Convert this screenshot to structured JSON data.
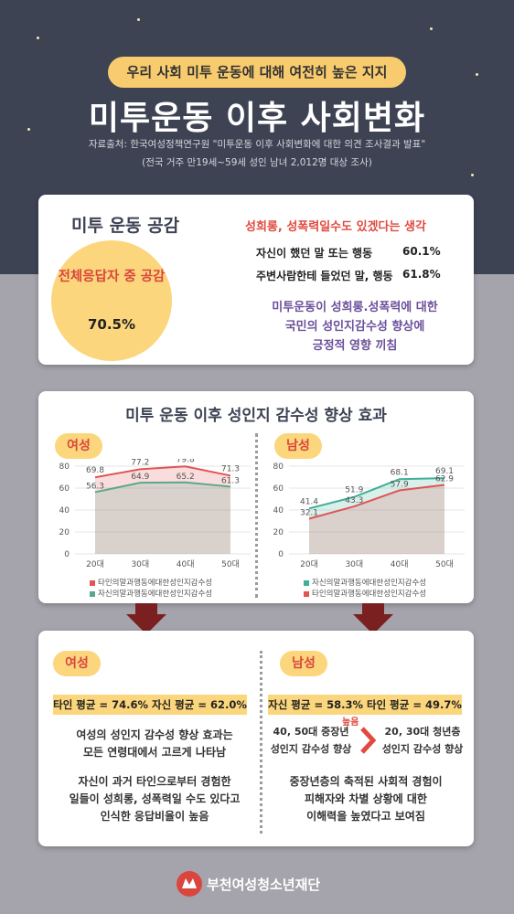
{
  "header": {
    "pill": "우리 사회 미투 운동에 대해 여전히 높은 지지",
    "title": "미투운동 이후 사회변화",
    "source": "자료출처: 한국여성정책연구원 \"미투운동 이후 사회변화에 대한 의견 조사결과 발표\"",
    "source_note": "(전국 거주 만19세~59세 성인 남녀 2,012명 대상 조사)"
  },
  "empathy": {
    "heading": "미투 운동 공감",
    "circle_label": "전체응답자 중 공감",
    "circle_value": "70.5%",
    "subheading": "성희롱, 성폭력일수도 있겠다는 생각",
    "items": [
      {
        "label": "자신이 했던 말 또는 행동",
        "value": "60.1%"
      },
      {
        "label": "주변사람한테 들었던 말, 행동",
        "value": "61.8%"
      }
    ],
    "conclusion_lines": [
      "미투운동이 성희롱.성폭력에 대한",
      "국민의 성인지감수성 향상에",
      "긍정적 영향 끼침"
    ]
  },
  "effect": {
    "heading": "미투 운동 이후 성인지 감수성 향상 효과",
    "female_tag": "여성",
    "male_tag": "남성"
  },
  "chart_data": [
    {
      "type": "area",
      "categories": [
        "20대",
        "30대",
        "40대",
        "50대"
      ],
      "ylim": [
        0,
        80
      ],
      "yticks": [
        0,
        20,
        40,
        60,
        80
      ],
      "series": [
        {
          "name": "타인의말과행동에대한성인지감수성",
          "values": [
            69.8,
            77.2,
            79.8,
            71.3
          ],
          "color": "#e05555"
        },
        {
          "name": "자신의말과행동에대한성인지감수성",
          "values": [
            56.3,
            64.9,
            65.2,
            61.3
          ],
          "color": "#5aa88a"
        }
      ]
    },
    {
      "type": "area",
      "categories": [
        "20대",
        "30대",
        "40대",
        "50대"
      ],
      "ylim": [
        0,
        80
      ],
      "yticks": [
        0,
        20,
        40,
        60,
        80
      ],
      "series": [
        {
          "name": "자신의말과행동에대한성인지감수성",
          "values": [
            41.4,
            51.9,
            68.1,
            69.1
          ],
          "color": "#3fb096"
        },
        {
          "name": "타인의말과행동에대한성인지감수성",
          "values": [
            32.1,
            43.3,
            57.9,
            62.9
          ],
          "color": "#e05555"
        }
      ]
    }
  ],
  "summary": {
    "female_tag": "여성",
    "male_tag": "남성",
    "female_avg": "타인 평균 = 74.6%   자신 평균 = 62.0%",
    "male_avg": "자신 평균 = 58.3%   타인 평균 = 49.7%",
    "female_text1": [
      "여성의 성인지 감수성 향상 효과는",
      "모든 연령대에서 고르게 나타남"
    ],
    "female_text2": [
      "자신이 과거 타인으로부터 경험한",
      "일들이 성희롱, 성폭력일 수도 있다고",
      "인식한 응답비율이 높음"
    ],
    "male_left": [
      "40, 50대 중장년",
      "성인지 감수성 향상"
    ],
    "male_higher": "높음",
    "male_right": [
      "20, 30대 청년층",
      "성인지 감수성 향상"
    ],
    "male_text": [
      "중장년층의 축적된 사회적 경험이",
      "피해자와 차별 상황에 대한",
      "이해력을 높였다고 보여짐"
    ]
  },
  "footer": {
    "org": "부천여성청소년재단"
  },
  "colors": {
    "navy": "#3e4354",
    "yellow": "#fbd67c",
    "red": "#e04a3f",
    "purple": "#6b4f9a"
  }
}
